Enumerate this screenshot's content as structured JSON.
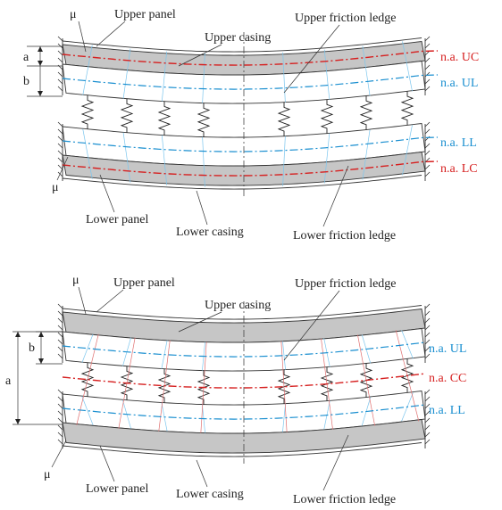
{
  "top": {
    "labels": {
      "mu_top": "μ",
      "upper_panel": "Upper panel",
      "upper_casing": "Upper casing",
      "upper_friction_ledge": "Upper friction ledge",
      "dim_a": "a",
      "dim_b": "b",
      "na_uc": "n.a. UC",
      "na_ul": "n.a. UL",
      "na_ll": "n.a. LL",
      "na_lc": "n.a. LC",
      "mu_bottom": "μ",
      "lower_panel": "Lower panel",
      "lower_casing": "Lower casing",
      "lower_friction_ledge": "Lower friction ledge"
    }
  },
  "bottom": {
    "labels": {
      "mu_top": "μ",
      "upper_panel": "Upper panel",
      "upper_casing": "Upper casing",
      "upper_friction_ledge": "Upper friction ledge",
      "dim_a": "a",
      "dim_b": "b",
      "na_ul": "n.a. UL",
      "na_cc": "n.a. CC",
      "na_ll": "n.a. LL",
      "mu_bottom": "μ",
      "lower_panel": "Lower panel",
      "lower_casing": "Lower casing",
      "lower_friction_ledge": "Lower friction ledge"
    }
  },
  "colors": {
    "neutral_axis_casing": "#d62020",
    "neutral_axis_ledge": "#1a8fd0",
    "casing_fill": "#c6c6c6"
  }
}
